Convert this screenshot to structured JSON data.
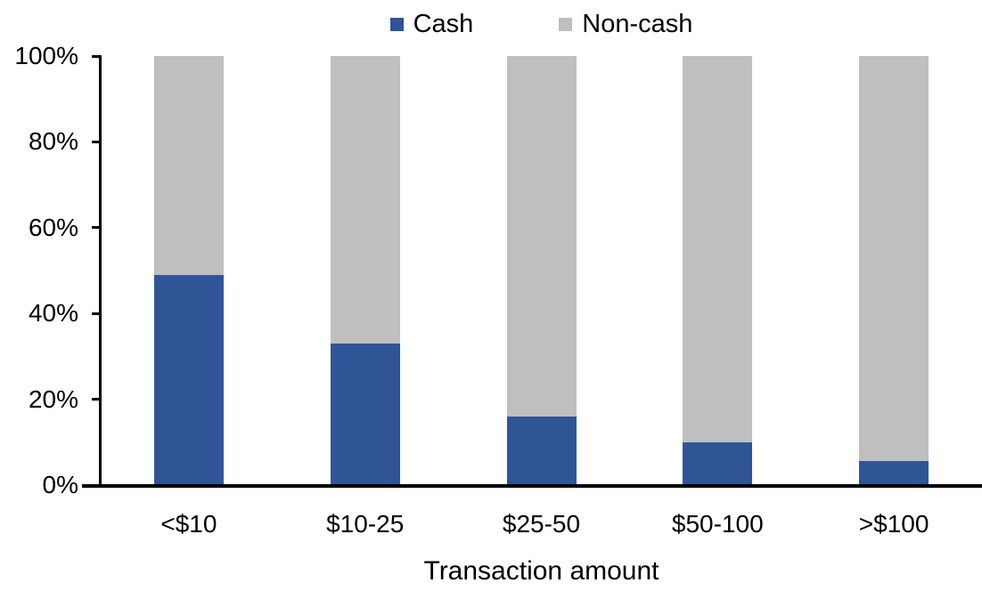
{
  "chart_data": {
    "type": "bar",
    "stacked": true,
    "stacked_total": 100,
    "title": "",
    "xlabel": "Transaction amount",
    "ylabel": "",
    "categories": [
      "<$10",
      "$10-25",
      "$25-50",
      "$50-100",
      ">$100"
    ],
    "series": [
      {
        "name": "Cash",
        "color": "#2F5597",
        "values": [
          49,
          33,
          16,
          10,
          5.5
        ]
      },
      {
        "name": "Non-cash",
        "color": "#BFBFBF",
        "values": [
          51,
          67,
          84,
          90,
          94.5
        ]
      }
    ],
    "y_ticks": [
      {
        "label": "0%",
        "value": 0
      },
      {
        "label": "20%",
        "value": 20
      },
      {
        "label": "40%",
        "value": 40
      },
      {
        "label": "60%",
        "value": 60
      },
      {
        "label": "80%",
        "value": 80
      },
      {
        "label": "100%",
        "value": 100
      }
    ],
    "ylim": [
      0,
      100
    ],
    "grid": false,
    "legend_position": "top"
  },
  "legend": {
    "items": [
      {
        "label": "Cash",
        "color": "#2F5597"
      },
      {
        "label": "Non-cash",
        "color": "#BFBFBF"
      }
    ]
  },
  "colors": {
    "axis": "#000000",
    "text": "#000000",
    "background": "#FFFFFF",
    "cash": "#2F5597",
    "noncash": "#BFBFBF"
  }
}
